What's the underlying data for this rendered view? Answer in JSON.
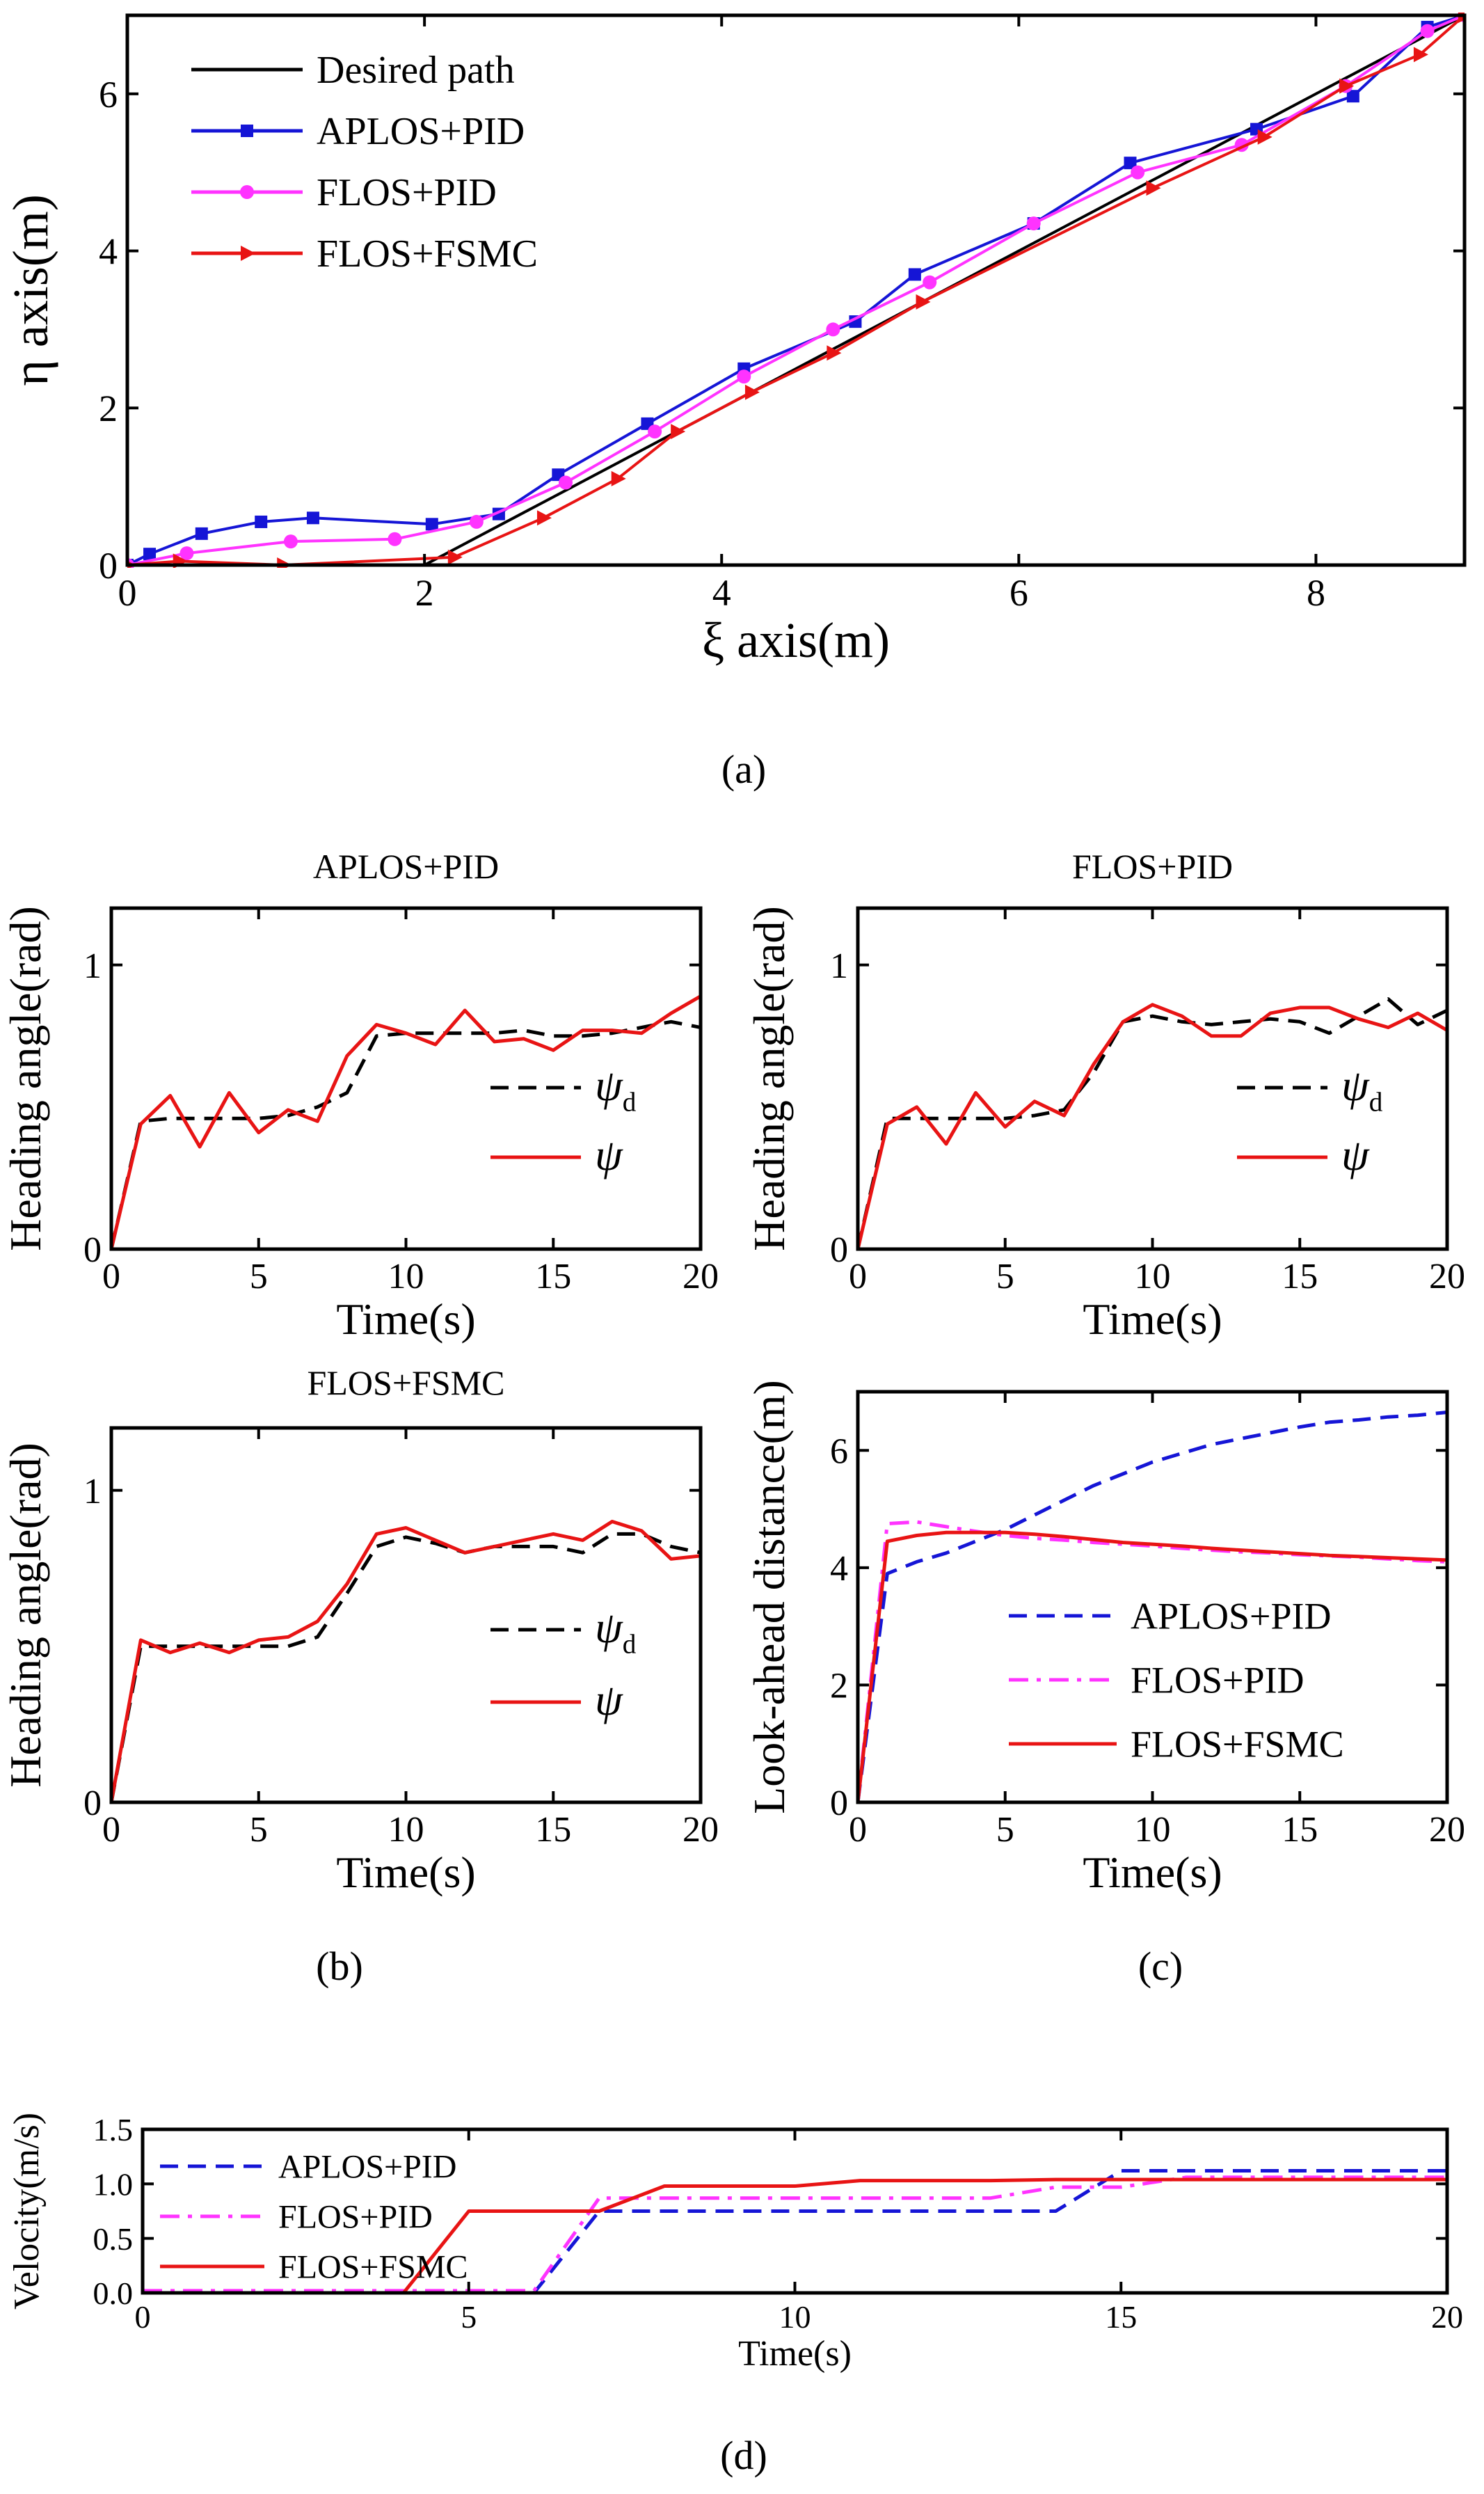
{
  "panel_labels": {
    "a": "(a)",
    "b": "(b)",
    "c": "(c)",
    "d": "(d)"
  },
  "chart_data": [
    {
      "id": "a",
      "type": "line",
      "title": "",
      "xlabel": "ξ axis(m)",
      "ylabel": "η axis(m)",
      "xlim": [
        0,
        9
      ],
      "ylim": [
        0,
        7
      ],
      "xticks": [
        0,
        2,
        4,
        6,
        8
      ],
      "yticks": [
        0,
        2,
        4,
        6
      ],
      "legend_position": "top-left",
      "series": [
        {
          "name": "Desired path",
          "color": "#000000",
          "marker": "none",
          "x": [
            0,
            2,
            9
          ],
          "y": [
            0,
            0,
            7
          ]
        },
        {
          "name": "APLOS+PID",
          "color": "#1515d6",
          "marker": "square",
          "x": [
            0,
            0.15,
            0.5,
            0.9,
            1.25,
            2.05,
            2.5,
            2.9,
            3.5,
            4.15,
            4.9,
            5.3,
            6.1,
            6.75,
            7.6,
            8.25,
            8.75,
            9.0
          ],
          "y": [
            0.0,
            0.14,
            0.4,
            0.55,
            0.6,
            0.52,
            0.65,
            1.15,
            1.8,
            2.5,
            3.1,
            3.7,
            4.35,
            5.12,
            5.55,
            5.97,
            6.85,
            7.0
          ]
        },
        {
          "name": "FLOS+PID",
          "color": "#ff33ff",
          "marker": "circle",
          "x": [
            0,
            0.4,
            1.1,
            1.8,
            2.35,
            2.95,
            3.55,
            4.15,
            4.75,
            5.4,
            6.1,
            6.8,
            7.5,
            8.2,
            8.75,
            9.0
          ],
          "y": [
            0.0,
            0.15,
            0.3,
            0.33,
            0.55,
            1.05,
            1.7,
            2.4,
            3.0,
            3.6,
            4.35,
            5.0,
            5.35,
            6.1,
            6.8,
            7.0
          ]
        },
        {
          "name": "FLOS+FSMC",
          "color": "#e81414",
          "marker": "triangle-right",
          "x": [
            0,
            0.35,
            1.05,
            2.2,
            2.8,
            3.3,
            3.7,
            4.2,
            4.75,
            5.35,
            6.9,
            7.65,
            8.2,
            8.7,
            9.0
          ],
          "y": [
            0.0,
            0.05,
            0.0,
            0.1,
            0.6,
            1.1,
            1.7,
            2.2,
            2.7,
            3.35,
            4.8,
            5.45,
            6.1,
            6.5,
            7.0
          ]
        }
      ]
    },
    {
      "id": "b1",
      "type": "line",
      "title": "APLOS+PID",
      "xlabel": "Time(s)",
      "ylabel": "Heading angle(rad)",
      "xlim": [
        0,
        20
      ],
      "ylim": [
        0,
        1.2
      ],
      "xticks": [
        0,
        5,
        10,
        15,
        20
      ],
      "yticks": [
        0,
        1
      ],
      "legend_position": "right",
      "series": [
        {
          "name": "ψd",
          "color": "#000000",
          "dash": "dashed",
          "x": [
            0,
            1,
            2,
            3,
            4,
            5,
            6,
            7,
            8,
            9,
            10,
            11,
            12,
            13,
            14,
            15,
            16,
            17,
            18,
            19,
            20
          ],
          "y": [
            0,
            0.45,
            0.46,
            0.46,
            0.46,
            0.46,
            0.47,
            0.5,
            0.55,
            0.75,
            0.76,
            0.76,
            0.76,
            0.76,
            0.77,
            0.75,
            0.75,
            0.76,
            0.78,
            0.8,
            0.78
          ]
        },
        {
          "name": "ψ",
          "color": "#e81414",
          "dash": "solid",
          "x": [
            0,
            1,
            2,
            3,
            4,
            5,
            6,
            7,
            8,
            9,
            10,
            11,
            12,
            13,
            14,
            15,
            16,
            17,
            18,
            19,
            20
          ],
          "y": [
            0,
            0.44,
            0.54,
            0.36,
            0.55,
            0.41,
            0.49,
            0.45,
            0.68,
            0.79,
            0.76,
            0.72,
            0.84,
            0.73,
            0.74,
            0.7,
            0.77,
            0.77,
            0.76,
            0.83,
            0.89
          ]
        }
      ]
    },
    {
      "id": "b2",
      "type": "line",
      "title": "FLOS+PID",
      "xlabel": "Time(s)",
      "ylabel": "Heading angle(rad)",
      "xlim": [
        0,
        20
      ],
      "ylim": [
        0,
        1.2
      ],
      "xticks": [
        0,
        5,
        10,
        15,
        20
      ],
      "yticks": [
        0,
        1
      ],
      "legend_position": "right",
      "series": [
        {
          "name": "ψd",
          "color": "#000000",
          "dash": "dashed",
          "x": [
            0,
            1,
            2,
            3,
            4,
            5,
            6,
            7,
            8,
            9,
            10,
            11,
            12,
            13,
            14,
            15,
            16,
            17,
            18,
            19,
            20
          ],
          "y": [
            0,
            0.46,
            0.46,
            0.46,
            0.46,
            0.46,
            0.47,
            0.49,
            0.62,
            0.8,
            0.82,
            0.8,
            0.79,
            0.8,
            0.81,
            0.8,
            0.76,
            0.82,
            0.88,
            0.79,
            0.84
          ]
        },
        {
          "name": "ψ",
          "color": "#e81414",
          "dash": "solid",
          "x": [
            0,
            1,
            2,
            3,
            4,
            5,
            6,
            7,
            8,
            9,
            10,
            11,
            12,
            13,
            14,
            15,
            16,
            17,
            18,
            19,
            20
          ],
          "y": [
            0,
            0.44,
            0.5,
            0.37,
            0.55,
            0.43,
            0.52,
            0.47,
            0.65,
            0.8,
            0.86,
            0.82,
            0.75,
            0.75,
            0.83,
            0.85,
            0.85,
            0.81,
            0.78,
            0.83,
            0.77
          ]
        }
      ]
    },
    {
      "id": "b3",
      "type": "line",
      "title": "FLOS+FSMC",
      "xlabel": "Time(s)",
      "ylabel": "Heading angle(rad)",
      "xlim": [
        0,
        20
      ],
      "ylim": [
        0,
        1.2
      ],
      "xticks": [
        0,
        5,
        10,
        15,
        20
      ],
      "yticks": [
        0,
        1
      ],
      "legend_position": "right",
      "series": [
        {
          "name": "ψd",
          "color": "#000000",
          "dash": "dashed",
          "x": [
            0,
            1,
            2,
            3,
            4,
            5,
            6,
            7,
            8,
            9,
            10,
            11,
            12,
            13,
            14,
            15,
            16,
            17,
            18,
            19,
            20
          ],
          "y": [
            0,
            0.5,
            0.5,
            0.5,
            0.5,
            0.5,
            0.5,
            0.53,
            0.67,
            0.82,
            0.85,
            0.83,
            0.8,
            0.82,
            0.82,
            0.82,
            0.8,
            0.86,
            0.86,
            0.82,
            0.8
          ]
        },
        {
          "name": "ψ",
          "color": "#e81414",
          "dash": "solid",
          "x": [
            0,
            1,
            2,
            3,
            4,
            5,
            6,
            7,
            8,
            9,
            10,
            11,
            12,
            13,
            14,
            15,
            16,
            17,
            18,
            19,
            20
          ],
          "y": [
            0,
            0.52,
            0.48,
            0.51,
            0.48,
            0.52,
            0.53,
            0.58,
            0.7,
            0.86,
            0.88,
            0.84,
            0.8,
            0.82,
            0.84,
            0.86,
            0.84,
            0.9,
            0.87,
            0.78,
            0.79
          ]
        }
      ]
    },
    {
      "id": "c",
      "type": "line",
      "title": "",
      "xlabel": "Time(s)",
      "ylabel": "Look-ahead distance(m)",
      "xlim": [
        0,
        20
      ],
      "ylim": [
        0,
        7
      ],
      "xticks": [
        0,
        5,
        10,
        15,
        20
      ],
      "yticks": [
        0,
        2,
        4,
        6
      ],
      "legend_position": "bottom-right",
      "series": [
        {
          "name": "APLOS+PID",
          "color": "#1515d6",
          "dash": "dashed",
          "x": [
            0,
            1,
            2,
            3,
            4,
            5,
            6,
            7,
            8,
            9,
            10,
            11,
            12,
            13,
            14,
            15,
            16,
            17,
            18,
            19,
            20
          ],
          "y": [
            0,
            3.9,
            4.1,
            4.25,
            4.45,
            4.65,
            4.9,
            5.15,
            5.4,
            5.6,
            5.8,
            5.95,
            6.1,
            6.2,
            6.3,
            6.4,
            6.48,
            6.52,
            6.57,
            6.6,
            6.65
          ]
        },
        {
          "name": "FLOS+PID",
          "color": "#ff33ff",
          "dash": "dashdot",
          "x": [
            0,
            1,
            2,
            3,
            4,
            5,
            6,
            7,
            8,
            9,
            10,
            11,
            12,
            13,
            14,
            15,
            16,
            17,
            18,
            19,
            20
          ],
          "y": [
            0,
            4.75,
            4.78,
            4.7,
            4.62,
            4.55,
            4.5,
            4.47,
            4.43,
            4.4,
            4.37,
            4.33,
            4.3,
            4.27,
            4.25,
            4.22,
            4.2,
            4.18,
            4.15,
            4.12,
            4.1
          ]
        },
        {
          "name": "FLOS+FSMC",
          "color": "#e81414",
          "dash": "solid",
          "x": [
            0,
            1,
            2,
            3,
            4,
            5,
            6,
            7,
            8,
            9,
            10,
            11,
            12,
            13,
            14,
            15,
            16,
            17,
            18,
            19,
            20
          ],
          "y": [
            0,
            4.45,
            4.55,
            4.6,
            4.6,
            4.6,
            4.57,
            4.53,
            4.48,
            4.43,
            4.4,
            4.37,
            4.33,
            4.3,
            4.27,
            4.24,
            4.21,
            4.19,
            4.17,
            4.15,
            4.13
          ]
        }
      ]
    },
    {
      "id": "d",
      "type": "line",
      "title": "",
      "xlabel": "Time(s)",
      "ylabel": "Velocity(m/s)",
      "xlim": [
        0,
        20
      ],
      "ylim": [
        0,
        1.5
      ],
      "xticks": [
        0,
        5,
        10,
        15,
        20
      ],
      "yticks": [
        0.0,
        0.5,
        1.0,
        1.5
      ],
      "ytick_labels": [
        "0.0",
        "0.5",
        "1.0",
        "1.5"
      ],
      "legend_position": "top-left",
      "series": [
        {
          "name": "APLOS+PID",
          "color": "#1515d6",
          "dash": "dashed",
          "x": [
            0,
            6,
            7,
            14,
            15,
            20
          ],
          "y": [
            0,
            0,
            0.75,
            0.75,
            1.12,
            1.12
          ]
        },
        {
          "name": "FLOS+PID",
          "color": "#ff33ff",
          "dash": "dashdot",
          "x": [
            0,
            6,
            7,
            13,
            14,
            15,
            16,
            20
          ],
          "y": [
            0.02,
            0.02,
            0.87,
            0.87,
            0.97,
            0.97,
            1.06,
            1.06
          ]
        },
        {
          "name": "FLOS+FSMC",
          "color": "#e81414",
          "dash": "solid",
          "x": [
            0,
            4,
            5,
            7,
            8,
            10,
            11,
            13,
            14,
            20
          ],
          "y": [
            0,
            0,
            0.75,
            0.75,
            0.98,
            0.98,
            1.03,
            1.03,
            1.04,
            1.04
          ]
        }
      ]
    }
  ]
}
